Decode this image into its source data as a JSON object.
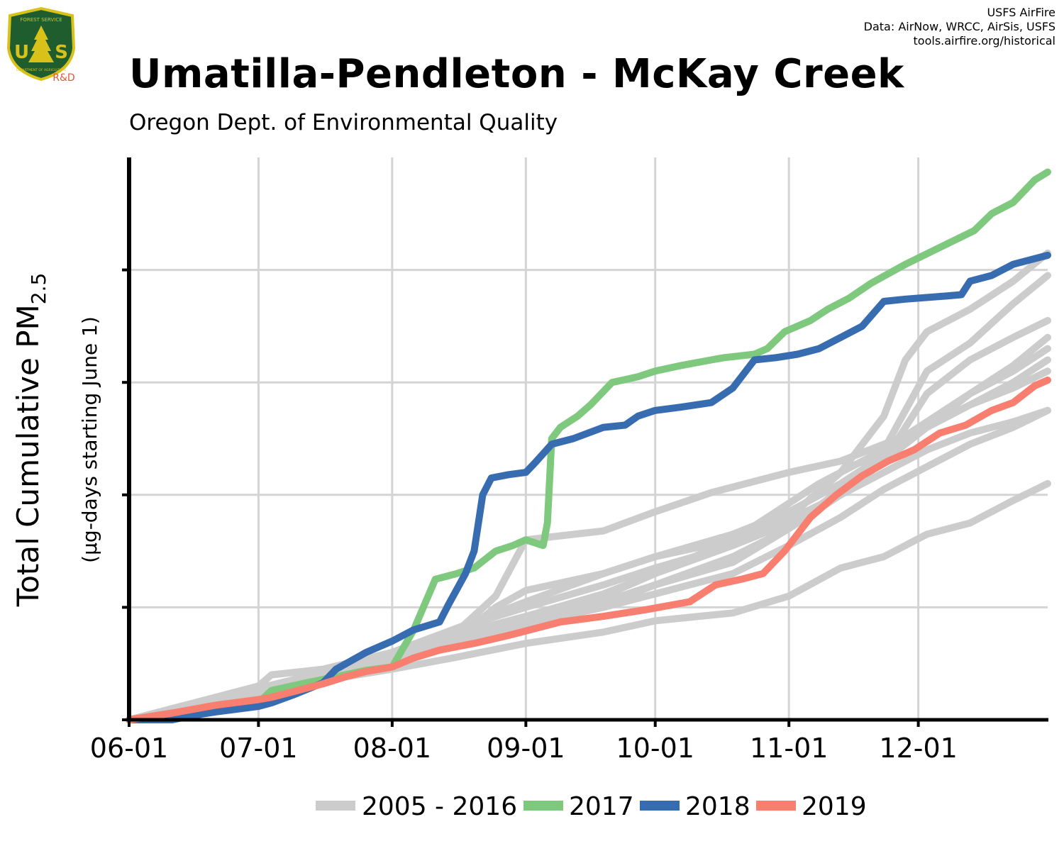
{
  "header": {
    "title": "Umatilla-Pendleton - McKay Creek",
    "subtitle": "Oregon Dept. of Environmental Quality",
    "credits": [
      "USFS AirFire",
      "Data: AirNow, WRCC, AirSis, USFS",
      "tools.airfire.org/historical"
    ]
  },
  "logo": {
    "badge_top": "FOREST SERVICE",
    "badge_bottom": "DEPARTMENT OF AGRICULTURE",
    "letters": "U S",
    "tag": "R&D",
    "colors": {
      "shield": "#1f5c2e",
      "trim": "#d8c21a",
      "tag": "#e8563a"
    }
  },
  "chart_data": {
    "type": "line",
    "ylabel": "Total Cumulative PM",
    "ylabel_subscript": "2.5",
    "ylabel_note": "(µg-days starting June 1)",
    "x_ticks": [
      "06-01",
      "07-01",
      "08-01",
      "09-01",
      "10-01",
      "11-01",
      "12-01"
    ],
    "x_tick_days": [
      0,
      30,
      61,
      92,
      122,
      153,
      183
    ],
    "x_range_days": [
      0,
      213
    ],
    "y_range": [
      0,
      5
    ],
    "y_tick_labels_shown": false,
    "y_gridlines": [
      1,
      2,
      3,
      4
    ],
    "grid": true,
    "legend_position": "bottom",
    "legend": [
      {
        "label": "2005 - 2016",
        "color": "#cccccc"
      },
      {
        "label": "2017",
        "color": "#7fc97f"
      },
      {
        "label": "2018",
        "color": "#386cb0"
      },
      {
        "label": "2019",
        "color": "#f87f6f"
      }
    ],
    "series": [
      {
        "name": "2017",
        "color": "#7fc97f",
        "points": [
          [
            0,
            0
          ],
          [
            10,
            0.06
          ],
          [
            20,
            0.1
          ],
          [
            30,
            0.15
          ],
          [
            33,
            0.26
          ],
          [
            40,
            0.32
          ],
          [
            50,
            0.4
          ],
          [
            55,
            0.44
          ],
          [
            61,
            0.47
          ],
          [
            66,
            0.8
          ],
          [
            71,
            1.25
          ],
          [
            76,
            1.3
          ],
          [
            80,
            1.35
          ],
          [
            85,
            1.5
          ],
          [
            89,
            1.55
          ],
          [
            92,
            1.6
          ],
          [
            96,
            1.55
          ],
          [
            97,
            1.75
          ],
          [
            98,
            2.5
          ],
          [
            100,
            2.6
          ],
          [
            104,
            2.7
          ],
          [
            107,
            2.8
          ],
          [
            112,
            3.0
          ],
          [
            118,
            3.05
          ],
          [
            122,
            3.1
          ],
          [
            128,
            3.15
          ],
          [
            135,
            3.2
          ],
          [
            138,
            3.22
          ],
          [
            145,
            3.25
          ],
          [
            148,
            3.3
          ],
          [
            152,
            3.45
          ],
          [
            158,
            3.55
          ],
          [
            162,
            3.65
          ],
          [
            167,
            3.75
          ],
          [
            172,
            3.88
          ],
          [
            180,
            4.05
          ],
          [
            188,
            4.2
          ],
          [
            196,
            4.35
          ],
          [
            200,
            4.5
          ],
          [
            205,
            4.6
          ],
          [
            210,
            4.8
          ],
          [
            213,
            4.87
          ]
        ]
      },
      {
        "name": "2018",
        "color": "#386cb0",
        "points": [
          [
            0,
            0
          ],
          [
            10,
            0.0
          ],
          [
            15,
            0.04
          ],
          [
            20,
            0.07
          ],
          [
            30,
            0.12
          ],
          [
            33,
            0.15
          ],
          [
            38,
            0.22
          ],
          [
            45,
            0.33
          ],
          [
            48,
            0.45
          ],
          [
            55,
            0.6
          ],
          [
            61,
            0.7
          ],
          [
            66,
            0.8
          ],
          [
            72,
            0.87
          ],
          [
            74,
            1.02
          ],
          [
            78,
            1.3
          ],
          [
            80,
            1.5
          ],
          [
            82,
            2.0
          ],
          [
            84,
            2.15
          ],
          [
            88,
            2.18
          ],
          [
            92,
            2.2
          ],
          [
            94,
            2.28
          ],
          [
            98,
            2.45
          ],
          [
            103,
            2.5
          ],
          [
            110,
            2.6
          ],
          [
            115,
            2.62
          ],
          [
            118,
            2.7
          ],
          [
            122,
            2.75
          ],
          [
            128,
            2.78
          ],
          [
            135,
            2.82
          ],
          [
            140,
            2.95
          ],
          [
            145,
            3.2
          ],
          [
            150,
            3.22
          ],
          [
            155,
            3.25
          ],
          [
            160,
            3.3
          ],
          [
            165,
            3.4
          ],
          [
            170,
            3.5
          ],
          [
            175,
            3.72
          ],
          [
            180,
            3.74
          ],
          [
            190,
            3.77
          ],
          [
            193,
            3.78
          ],
          [
            195,
            3.9
          ],
          [
            200,
            3.95
          ],
          [
            205,
            4.05
          ],
          [
            210,
            4.1
          ],
          [
            213,
            4.13
          ]
        ]
      },
      {
        "name": "2019",
        "color": "#f87f6f",
        "points": [
          [
            0,
            0
          ],
          [
            10,
            0.06
          ],
          [
            20,
            0.13
          ],
          [
            30,
            0.18
          ],
          [
            33,
            0.2
          ],
          [
            38,
            0.25
          ],
          [
            45,
            0.32
          ],
          [
            50,
            0.38
          ],
          [
            55,
            0.43
          ],
          [
            61,
            0.47
          ],
          [
            66,
            0.55
          ],
          [
            72,
            0.62
          ],
          [
            80,
            0.68
          ],
          [
            88,
            0.75
          ],
          [
            95,
            0.82
          ],
          [
            100,
            0.87
          ],
          [
            110,
            0.92
          ],
          [
            120,
            0.98
          ],
          [
            130,
            1.05
          ],
          [
            136,
            1.2
          ],
          [
            142,
            1.25
          ],
          [
            147,
            1.3
          ],
          [
            152,
            1.5
          ],
          [
            158,
            1.8
          ],
          [
            164,
            2.0
          ],
          [
            170,
            2.17
          ],
          [
            176,
            2.3
          ],
          [
            182,
            2.4
          ],
          [
            188,
            2.55
          ],
          [
            194,
            2.62
          ],
          [
            200,
            2.75
          ],
          [
            205,
            2.82
          ],
          [
            210,
            2.97
          ],
          [
            213,
            3.02
          ]
        ]
      },
      {
        "name": "",
        "color": "#cccccc",
        "points": [
          [
            0,
            0
          ],
          [
            15,
            0.1
          ],
          [
            30,
            0.22
          ],
          [
            45,
            0.35
          ],
          [
            61,
            0.45
          ],
          [
            75,
            0.55
          ],
          [
            92,
            0.68
          ],
          [
            110,
            0.78
          ],
          [
            122,
            0.88
          ],
          [
            140,
            0.95
          ],
          [
            153,
            1.1
          ],
          [
            165,
            1.35
          ],
          [
            175,
            1.45
          ],
          [
            185,
            1.65
          ],
          [
            195,
            1.75
          ],
          [
            205,
            1.95
          ],
          [
            213,
            2.1
          ]
        ]
      },
      {
        "name": "",
        "color": "#cccccc",
        "points": [
          [
            0,
            0
          ],
          [
            15,
            0.12
          ],
          [
            30,
            0.25
          ],
          [
            45,
            0.4
          ],
          [
            61,
            0.55
          ],
          [
            75,
            0.7
          ],
          [
            92,
            0.85
          ],
          [
            110,
            1.0
          ],
          [
            122,
            1.12
          ],
          [
            140,
            1.3
          ],
          [
            153,
            1.55
          ],
          [
            165,
            1.8
          ],
          [
            175,
            2.05
          ],
          [
            185,
            2.25
          ],
          [
            195,
            2.45
          ],
          [
            205,
            2.6
          ],
          [
            213,
            2.75
          ]
        ]
      },
      {
        "name": "",
        "color": "#cccccc",
        "points": [
          [
            0,
            0
          ],
          [
            15,
            0.15
          ],
          [
            30,
            0.3
          ],
          [
            33,
            0.4
          ],
          [
            45,
            0.45
          ],
          [
            61,
            0.6
          ],
          [
            75,
            0.75
          ],
          [
            85,
            1.1
          ],
          [
            92,
            1.6
          ],
          [
            110,
            1.68
          ],
          [
            122,
            1.85
          ],
          [
            135,
            2.02
          ],
          [
            153,
            2.2
          ],
          [
            165,
            2.3
          ],
          [
            175,
            2.45
          ],
          [
            185,
            2.6
          ],
          [
            195,
            2.8
          ],
          [
            205,
            2.95
          ],
          [
            213,
            3.1
          ]
        ]
      },
      {
        "name": "",
        "color": "#cccccc",
        "points": [
          [
            0,
            0
          ],
          [
            15,
            0.14
          ],
          [
            30,
            0.28
          ],
          [
            45,
            0.42
          ],
          [
            61,
            0.6
          ],
          [
            75,
            0.8
          ],
          [
            92,
            1.0
          ],
          [
            110,
            1.2
          ],
          [
            122,
            1.35
          ],
          [
            140,
            1.55
          ],
          [
            153,
            1.75
          ],
          [
            165,
            2.0
          ],
          [
            175,
            2.3
          ],
          [
            185,
            2.6
          ],
          [
            195,
            2.9
          ],
          [
            205,
            3.1
          ],
          [
            213,
            3.3
          ]
        ]
      },
      {
        "name": "",
        "color": "#cccccc",
        "points": [
          [
            0,
            0
          ],
          [
            15,
            0.13
          ],
          [
            30,
            0.27
          ],
          [
            45,
            0.4
          ],
          [
            61,
            0.55
          ],
          [
            75,
            0.7
          ],
          [
            85,
            1.0
          ],
          [
            92,
            1.15
          ],
          [
            110,
            1.3
          ],
          [
            122,
            1.45
          ],
          [
            140,
            1.6
          ],
          [
            153,
            1.78
          ],
          [
            165,
            2.0
          ],
          [
            175,
            2.3
          ],
          [
            180,
            2.6
          ],
          [
            185,
            2.9
          ],
          [
            195,
            3.2
          ],
          [
            205,
            3.4
          ],
          [
            213,
            3.55
          ]
        ]
      },
      {
        "name": "",
        "color": "#cccccc",
        "points": [
          [
            0,
            0
          ],
          [
            15,
            0.12
          ],
          [
            30,
            0.25
          ],
          [
            45,
            0.38
          ],
          [
            61,
            0.55
          ],
          [
            75,
            0.72
          ],
          [
            92,
            0.9
          ],
          [
            110,
            1.1
          ],
          [
            122,
            1.3
          ],
          [
            140,
            1.6
          ],
          [
            150,
            1.85
          ],
          [
            160,
            2.1
          ],
          [
            175,
            2.4
          ],
          [
            185,
            2.65
          ],
          [
            195,
            2.9
          ],
          [
            205,
            3.15
          ],
          [
            213,
            3.4
          ]
        ]
      },
      {
        "name": "",
        "color": "#cccccc",
        "points": [
          [
            0,
            0
          ],
          [
            15,
            0.12
          ],
          [
            30,
            0.26
          ],
          [
            45,
            0.4
          ],
          [
            61,
            0.55
          ],
          [
            75,
            0.7
          ],
          [
            92,
            0.88
          ],
          [
            110,
            1.05
          ],
          [
            122,
            1.2
          ],
          [
            140,
            1.45
          ],
          [
            153,
            1.7
          ],
          [
            165,
            2.05
          ],
          [
            175,
            2.4
          ],
          [
            180,
            2.75
          ],
          [
            185,
            3.1
          ],
          [
            195,
            3.35
          ],
          [
            205,
            3.7
          ],
          [
            213,
            3.95
          ]
        ]
      },
      {
        "name": "",
        "color": "#cccccc",
        "points": [
          [
            0,
            0
          ],
          [
            15,
            0.13
          ],
          [
            30,
            0.27
          ],
          [
            45,
            0.42
          ],
          [
            61,
            0.58
          ],
          [
            75,
            0.75
          ],
          [
            92,
            0.92
          ],
          [
            110,
            1.12
          ],
          [
            122,
            1.3
          ],
          [
            140,
            1.55
          ],
          [
            153,
            1.8
          ],
          [
            165,
            2.2
          ],
          [
            175,
            2.7
          ],
          [
            180,
            3.2
          ],
          [
            185,
            3.45
          ],
          [
            195,
            3.65
          ],
          [
            205,
            3.9
          ],
          [
            213,
            4.15
          ]
        ]
      },
      {
        "name": "",
        "color": "#cccccc",
        "points": [
          [
            0,
            0
          ],
          [
            15,
            0.12
          ],
          [
            30,
            0.25
          ],
          [
            45,
            0.38
          ],
          [
            61,
            0.52
          ],
          [
            75,
            0.68
          ],
          [
            92,
            0.85
          ],
          [
            110,
            1.02
          ],
          [
            122,
            1.2
          ],
          [
            140,
            1.4
          ],
          [
            153,
            1.7
          ],
          [
            165,
            2.0
          ],
          [
            175,
            2.2
          ],
          [
            185,
            2.4
          ],
          [
            195,
            2.55
          ],
          [
            205,
            2.65
          ],
          [
            213,
            2.75
          ]
        ]
      },
      {
        "name": "",
        "color": "#cccccc",
        "points": [
          [
            0,
            0
          ],
          [
            15,
            0.14
          ],
          [
            30,
            0.28
          ],
          [
            45,
            0.42
          ],
          [
            61,
            0.6
          ],
          [
            75,
            0.8
          ],
          [
            92,
            1.05
          ],
          [
            110,
            1.3
          ],
          [
            122,
            1.45
          ],
          [
            140,
            1.65
          ],
          [
            153,
            1.85
          ],
          [
            165,
            2.1
          ],
          [
            175,
            2.35
          ],
          [
            185,
            2.6
          ],
          [
            195,
            2.8
          ],
          [
            205,
            3.0
          ],
          [
            213,
            3.2
          ]
        ]
      }
    ]
  }
}
